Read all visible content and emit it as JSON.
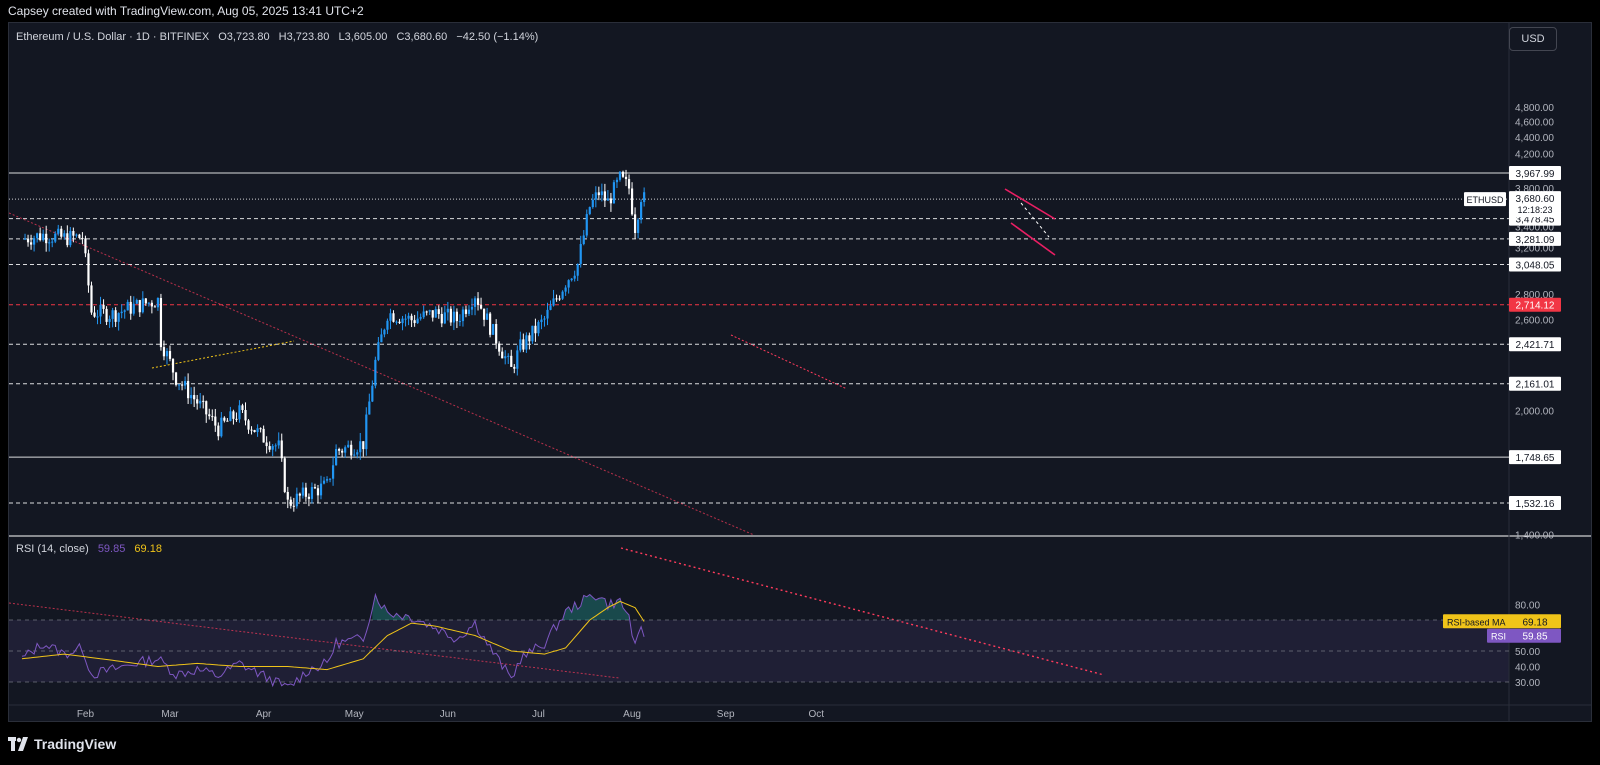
{
  "header": {
    "caption": "Capsey created with TradingView.com, Aug 05, 2025 13:41 UTC+2"
  },
  "legend": {
    "symbol": "Ethereum / U.S. Dollar · 1D · BITFINEX",
    "open": "O3,723.80",
    "high": "H3,723.80",
    "low": "L3,605.00",
    "close": "C3,680.60",
    "change": "−42.50 (−1.14%)"
  },
  "rsi_legend": {
    "name": "RSI (14, close)",
    "value": "59.85",
    "ma_value": "69.18"
  },
  "currency_button": "USD",
  "footer": {
    "brand": "TradingView"
  },
  "colors": {
    "background": "#131722",
    "up": "#2196f3",
    "down": "#ffffff",
    "rsi_line": "#7e57c2",
    "rsi_ma": "#f0c419",
    "red_level": "#f23645",
    "trendline": "#ff3b5c",
    "pink_channel": "#e91e63"
  },
  "chart_data": {
    "type": "candlestick",
    "price_axis": {
      "ticks": [
        "4,800.00",
        "4,600.00",
        "4,400.00",
        "4,200.00",
        "3,800.00",
        "3,400.00",
        "3,200.00",
        "2,800.00",
        "2,600.00",
        "2,000.00",
        "1,400.00"
      ],
      "ylim": [
        1350,
        4900
      ],
      "scale": "log"
    },
    "time_axis": {
      "labels": [
        "Feb",
        "Mar",
        "Apr",
        "May",
        "Jun",
        "Jul",
        "Aug",
        "Sep",
        "Oct"
      ]
    },
    "levels": [
      {
        "price": 3967.99,
        "label": "3,967.99",
        "style": "solid",
        "color": "#ffffff"
      },
      {
        "price": 3478.45,
        "label": "3,478.45",
        "style": "dashed",
        "color": "#ffffff"
      },
      {
        "price": 3281.09,
        "label": "3,281.09",
        "style": "dashed",
        "color": "#ffffff"
      },
      {
        "price": 3048.05,
        "label": "3,048.05",
        "style": "dashed",
        "color": "#ffffff"
      },
      {
        "price": 2714.12,
        "label": "2,714.12",
        "style": "dashed",
        "color": "#f23645"
      },
      {
        "price": 2421.71,
        "label": "2,421.71",
        "style": "dashed",
        "color": "#ffffff"
      },
      {
        "price": 2161.01,
        "label": "2,161.01",
        "style": "dashed",
        "color": "#ffffff"
      },
      {
        "price": 1748.65,
        "label": "1,748.65",
        "style": "solid",
        "color": "#ffffff"
      },
      {
        "price": 1532.16,
        "label": "1,532.16",
        "style": "dashed",
        "color": "#ffffff"
      }
    ],
    "last_price": {
      "price": 3680.6,
      "label": "3,680.60",
      "symbol_tag": "ETHUSD",
      "countdown": "12:18:23"
    },
    "price_points": [
      [
        "Jan 11",
        3280
      ],
      [
        "Jan 18",
        3320
      ],
      [
        "Jan 25",
        3290
      ],
      [
        "Jan 31",
        3300
      ],
      [
        "Feb 02",
        2870
      ],
      [
        "Feb 03",
        2660
      ],
      [
        "Feb 10",
        2640
      ],
      [
        "Feb 17",
        2700
      ],
      [
        "Feb 25",
        2750
      ],
      [
        "Feb 26",
        2450
      ],
      [
        "Mar 03",
        2200
      ],
      [
        "Mar 10",
        2050
      ],
      [
        "Mar 17",
        1900
      ],
      [
        "Mar 24",
        1990
      ],
      [
        "Mar 31",
        1860
      ],
      [
        "Apr 06",
        1800
      ],
      [
        "Apr 09",
        1530
      ],
      [
        "Apr 16",
        1580
      ],
      [
        "Apr 22",
        1610
      ],
      [
        "Apr 25",
        1780
      ],
      [
        "May 04",
        1820
      ],
      [
        "May 08",
        2300
      ],
      [
        "May 12",
        2650
      ],
      [
        "May 20",
        2600
      ],
      [
        "May 28",
        2650
      ],
      [
        "Jun 04",
        2600
      ],
      [
        "Jun 10",
        2800
      ],
      [
        "Jun 15",
        2550
      ],
      [
        "Jun 22",
        2250
      ],
      [
        "Jun 25",
        2400
      ],
      [
        "Jul 03",
        2600
      ],
      [
        "Jul 10",
        2900
      ],
      [
        "Jul 14",
        3050
      ],
      [
        "Jul 18",
        3600
      ],
      [
        "Jul 21",
        3750
      ],
      [
        "Jul 24",
        3650
      ],
      [
        "Jul 28",
        3900
      ],
      [
        "Jul 31",
        3800
      ],
      [
        "Aug 02",
        3400
      ],
      [
        "Aug 04",
        3720
      ],
      [
        "Aug 05",
        3680
      ]
    ],
    "rsi": {
      "axis_ticks": [
        "80.00",
        "50.00",
        "40.00",
        "30.00"
      ],
      "ylim": [
        25,
        90
      ],
      "band": [
        30,
        70
      ],
      "ma_label": "RSI-based MA",
      "rsi_label": "RSI",
      "rsi_last": "59.85",
      "ma_last": "69.18",
      "rsi_points": [
        [
          "Jan 11",
          45
        ],
        [
          "Jan 18",
          55
        ],
        [
          "Jan 25",
          48
        ],
        [
          "Jan 31",
          52
        ],
        [
          "Feb 03",
          35
        ],
        [
          "Feb 10",
          38
        ],
        [
          "Feb 17",
          42
        ],
        [
          "Feb 25",
          45
        ],
        [
          "Mar 03",
          35
        ],
        [
          "Mar 10",
          38
        ],
        [
          "Mar 17",
          34
        ],
        [
          "Mar 24",
          42
        ],
        [
          "Mar 31",
          35
        ],
        [
          "Apr 09",
          26
        ],
        [
          "Apr 16",
          38
        ],
        [
          "Apr 22",
          42
        ],
        [
          "Apr 25",
          55
        ],
        [
          "May 04",
          58
        ],
        [
          "May 08",
          86
        ],
        [
          "May 12",
          75
        ],
        [
          "May 20",
          72
        ],
        [
          "May 28",
          65
        ],
        [
          "Jun 04",
          58
        ],
        [
          "Jun 10",
          68
        ],
        [
          "Jun 15",
          52
        ],
        [
          "Jun 22",
          32
        ],
        [
          "Jun 25",
          45
        ],
        [
          "Jul 03",
          55
        ],
        [
          "Jul 10",
          75
        ],
        [
          "Jul 14",
          80
        ],
        [
          "Jul 18",
          85
        ],
        [
          "Jul 21",
          86
        ],
        [
          "Jul 24",
          80
        ],
        [
          "Jul 28",
          82
        ],
        [
          "Jul 31",
          72
        ],
        [
          "Aug 02",
          52
        ],
        [
          "Aug 04",
          63
        ],
        [
          "Aug 05",
          60
        ]
      ],
      "ma_points": [
        [
          "Jan 11",
          45
        ],
        [
          "Jan 25",
          48
        ],
        [
          "Feb 10",
          44
        ],
        [
          "Feb 25",
          40
        ],
        [
          "Mar 10",
          42
        ],
        [
          "Mar 24",
          40
        ],
        [
          "Apr 09",
          40
        ],
        [
          "Apr 22",
          38
        ],
        [
          "May 04",
          45
        ],
        [
          "May 12",
          60
        ],
        [
          "May 20",
          68
        ],
        [
          "May 28",
          66
        ],
        [
          "Jun 10",
          60
        ],
        [
          "Jun 22",
          50
        ],
        [
          "Jul 03",
          48
        ],
        [
          "Jul 10",
          52
        ],
        [
          "Jul 18",
          70
        ],
        [
          "Jul 24",
          78
        ],
        [
          "Jul 28",
          82
        ],
        [
          "Aug 02",
          78
        ],
        [
          "Aug 05",
          69
        ]
      ]
    }
  }
}
